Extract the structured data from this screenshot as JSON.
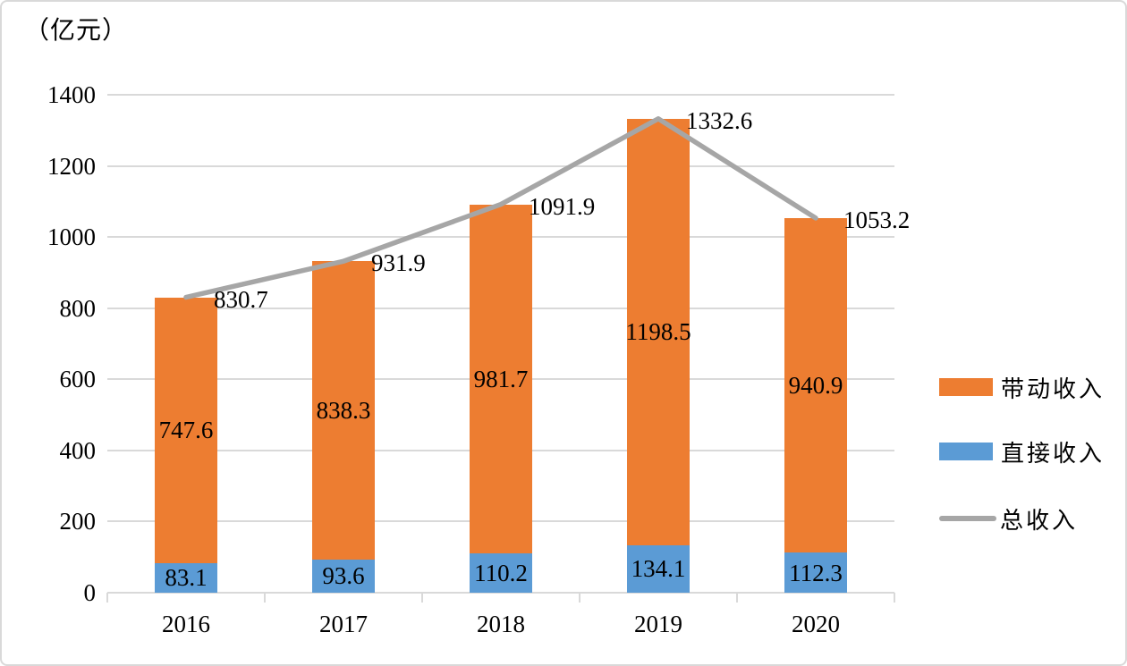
{
  "chart_data": {
    "type": "bar",
    "subtype": "stacked-bar-with-line-overlay",
    "unit_label": "（亿元）",
    "categories": [
      "2016",
      "2017",
      "2018",
      "2019",
      "2020"
    ],
    "series": [
      {
        "name": "直接收入",
        "type": "bar",
        "color": "#5B9BD5",
        "values": [
          83.1,
          93.6,
          110.2,
          134.1,
          112.3
        ]
      },
      {
        "name": "带动收入",
        "type": "bar",
        "color": "#ED7D31",
        "values": [
          747.6,
          838.3,
          981.7,
          1198.5,
          940.9
        ]
      },
      {
        "name": "总收入",
        "type": "line",
        "color": "#A6A6A6",
        "values": [
          830.7,
          931.9,
          1091.9,
          1332.6,
          1053.2
        ]
      }
    ],
    "legend": [
      "带动收入",
      "直接收入",
      "总收入"
    ],
    "legend_position": "right",
    "stacked": true,
    "grid": true,
    "data_labels": true,
    "ylim": [
      0,
      1400
    ],
    "ytick_step": 200,
    "colors": {
      "gridline": "#D9D9D9",
      "axis": "#D9D9D9",
      "text": "#000000",
      "border": "#D9D9D9"
    }
  }
}
